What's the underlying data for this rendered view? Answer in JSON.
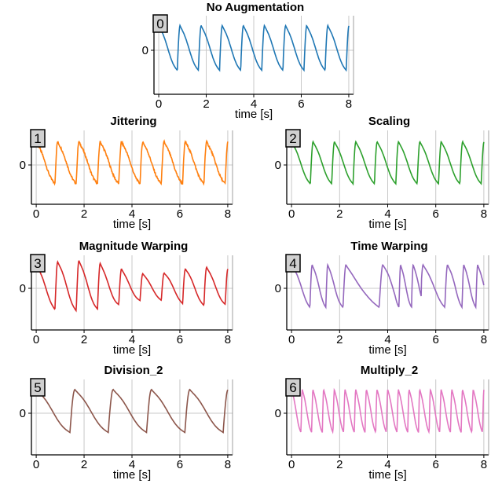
{
  "chart_data": [
    {
      "type": "line",
      "id": "0",
      "title": "No Augmentation",
      "xlabel": "time [s]",
      "ylabel": "",
      "xlim": [
        -0.2,
        8.2
      ],
      "xticks": [
        0,
        2,
        4,
        6,
        8
      ],
      "yticks": [
        0
      ],
      "grid": true,
      "color": "#1f77b4",
      "series": [
        {
          "name": "",
          "cycles": 9,
          "shape": "normal",
          "amplitude": 1
        }
      ]
    },
    {
      "type": "line",
      "id": "1",
      "title": "Jittering",
      "xlabel": "time [s]",
      "ylabel": "",
      "xlim": [
        -0.2,
        8.2
      ],
      "xticks": [
        0,
        2,
        4,
        6,
        8
      ],
      "yticks": [
        0
      ],
      "grid": true,
      "color": "#ff7f0e",
      "series": [
        {
          "name": "",
          "cycles": 9,
          "shape": "noisy",
          "amplitude": 1
        }
      ]
    },
    {
      "type": "line",
      "id": "2",
      "title": "Scaling",
      "xlabel": "time [s]",
      "ylabel": "",
      "xlim": [
        -0.2,
        8.2
      ],
      "xticks": [
        0,
        2,
        4,
        6,
        8
      ],
      "yticks": [
        0
      ],
      "grid": true,
      "color": "#2ca02c",
      "series": [
        {
          "name": "",
          "cycles": 9,
          "shape": "normal",
          "amplitude": 1
        }
      ]
    },
    {
      "type": "line",
      "id": "3",
      "title": "Magnitude Warping",
      "xlabel": "time [s]",
      "ylabel": "",
      "xlim": [
        -0.2,
        8.2
      ],
      "xticks": [
        0,
        2,
        4,
        6,
        8
      ],
      "yticks": [
        0
      ],
      "grid": true,
      "color": "#d62728",
      "series": [
        {
          "name": "",
          "cycles": 9,
          "shape": "magwarp",
          "amplitude": 1
        }
      ]
    },
    {
      "type": "line",
      "id": "4",
      "title": "Time Warping",
      "xlabel": "time [s]",
      "ylabel": "",
      "xlim": [
        -0.2,
        8.2
      ],
      "xticks": [
        0,
        2,
        4,
        6,
        8
      ],
      "yticks": [
        0
      ],
      "grid": true,
      "color": "#9467bd",
      "series": [
        {
          "name": "",
          "cycles": 9,
          "shape": "timewarp",
          "amplitude": 1
        }
      ]
    },
    {
      "type": "line",
      "id": "5",
      "title": "Division_2",
      "xlabel": "time [s]",
      "ylabel": "",
      "xlim": [
        -0.2,
        8.2
      ],
      "xticks": [
        0,
        2,
        4,
        6,
        8
      ],
      "yticks": [
        0
      ],
      "grid": true,
      "color": "#8c564b",
      "series": [
        {
          "name": "",
          "cycles": 5,
          "shape": "normal",
          "amplitude": 1
        }
      ]
    },
    {
      "type": "line",
      "id": "6",
      "title": "Multiply_2",
      "xlabel": "time [s]",
      "ylabel": "",
      "xlim": [
        -0.2,
        8.2
      ],
      "xticks": [
        0,
        2,
        4,
        6,
        8
      ],
      "yticks": [
        0
      ],
      "grid": true,
      "color": "#e377c2",
      "series": [
        {
          "name": "",
          "cycles": 18,
          "shape": "normal",
          "amplitude": 1
        }
      ]
    }
  ]
}
